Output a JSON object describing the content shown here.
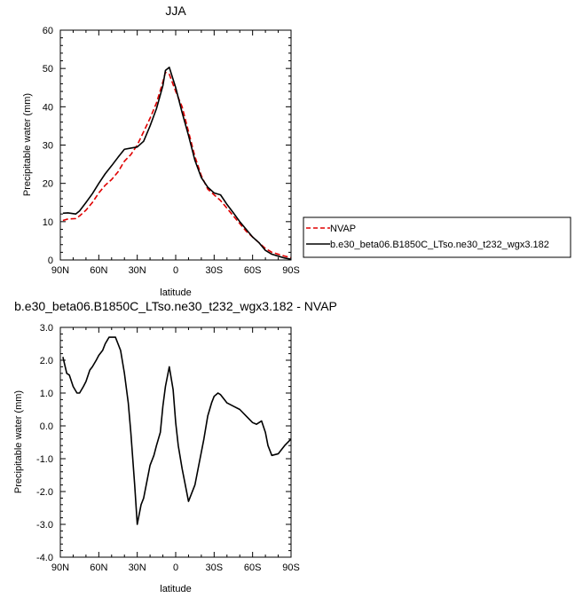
{
  "chart_data": [
    {
      "type": "line",
      "title": "JJA",
      "xlabel": "latitude",
      "ylabel": "Precipitable water (mm)",
      "xlim": [
        90,
        -90
      ],
      "ylim": [
        0,
        60
      ],
      "x_ticks": [
        90,
        60,
        30,
        0,
        -30,
        -60,
        -90
      ],
      "x_tick_labels": [
        "90N",
        "60N",
        "30N",
        "0",
        "30S",
        "60S",
        "90S"
      ],
      "y_ticks": [
        0,
        10,
        20,
        30,
        40,
        50,
        60
      ],
      "y_tick_labels": [
        "0",
        "10",
        "20",
        "30",
        "40",
        "50",
        "60"
      ],
      "legend_position": "right",
      "series": [
        {
          "name": "NVAP",
          "color": "#e00000",
          "dash": "dashed",
          "x": [
            88,
            84,
            78,
            75,
            70,
            65,
            60,
            55,
            50,
            45,
            40,
            35,
            30,
            25,
            20,
            15,
            10,
            8,
            5,
            0,
            -5,
            -10,
            -15,
            -20,
            -25,
            -30,
            -35,
            -40,
            -45,
            -50,
            -55,
            -60,
            -65,
            -70,
            -75,
            -80,
            -85,
            -90
          ],
          "values": [
            10.3,
            10.7,
            10.8,
            11.5,
            13.0,
            15.0,
            17.5,
            19.5,
            21.0,
            23.0,
            25.8,
            27.5,
            30.0,
            33.5,
            37.0,
            41.0,
            46.5,
            49.0,
            48.5,
            44.0,
            40.0,
            33.5,
            27.0,
            22.0,
            18.5,
            17.0,
            15.5,
            13.5,
            11.5,
            9.5,
            7.5,
            6.0,
            4.5,
            3.0,
            2.0,
            1.5,
            1.0,
            0.6
          ]
        },
        {
          "name": "b.e30_beta06.B1850C_LTso.ne30_t232_wgx3.182",
          "color": "#000000",
          "dash": "solid",
          "x": [
            88,
            84,
            78,
            75,
            70,
            65,
            60,
            55,
            50,
            45,
            40,
            35,
            30,
            25,
            20,
            15,
            10,
            8,
            5,
            0,
            -5,
            -10,
            -15,
            -20,
            -25,
            -30,
            -35,
            -40,
            -45,
            -50,
            -55,
            -60,
            -65,
            -70,
            -75,
            -80,
            -85,
            -90
          ],
          "values": [
            12.2,
            12.3,
            12.0,
            12.8,
            15.0,
            17.3,
            20.0,
            22.5,
            24.6,
            26.8,
            28.9,
            29.2,
            29.5,
            31.0,
            35.0,
            39.5,
            45.5,
            49.5,
            50.3,
            45.0,
            38.5,
            32.5,
            26.0,
            21.5,
            19.0,
            17.5,
            17.0,
            14.5,
            12.3,
            10.0,
            8.0,
            6.0,
            4.5,
            2.5,
            1.5,
            1.0,
            0.5,
            0.2
          ]
        }
      ]
    },
    {
      "type": "line",
      "title": "b.e30_beta06.B1850C_LTso.ne30_t232_wgx3.182 - NVAP",
      "xlabel": "latitude",
      "ylabel": "Precipitable water (mm)",
      "xlim": [
        90,
        -90
      ],
      "ylim": [
        -4,
        3
      ],
      "x_ticks": [
        90,
        60,
        30,
        0,
        -30,
        -60,
        -90
      ],
      "x_tick_labels": [
        "90N",
        "60N",
        "30N",
        "0",
        "30S",
        "60S",
        "90S"
      ],
      "y_ticks": [
        3,
        2,
        1,
        0,
        -1,
        -2,
        -3,
        -4
      ],
      "y_tick_labels": [
        "3.0",
        "2.0",
        "1.0",
        "0.0",
        "-1.0",
        "-2.0",
        "-3.0",
        "-4.0"
      ],
      "series": [
        {
          "color": "#000000",
          "x": [
            88,
            85,
            83,
            80,
            77,
            75,
            72,
            70,
            67,
            65,
            62,
            60,
            57,
            55,
            52,
            50,
            47,
            45,
            43,
            40,
            37,
            35,
            32,
            30,
            27,
            25,
            22,
            20,
            17,
            15,
            12,
            10,
            8,
            5,
            2,
            0,
            -2,
            -5,
            -8,
            -10,
            -12,
            -15,
            -18,
            -20,
            -22,
            -25,
            -28,
            -30,
            -33,
            -35,
            -38,
            -40,
            -45,
            -50,
            -55,
            -60,
            -63,
            -65,
            -67,
            -70,
            -72,
            -75,
            -80,
            -85,
            -90
          ],
          "values": [
            2.1,
            1.6,
            1.55,
            1.2,
            1.0,
            1.0,
            1.2,
            1.35,
            1.7,
            1.8,
            2.0,
            2.15,
            2.3,
            2.5,
            2.7,
            2.7,
            2.7,
            2.5,
            2.3,
            1.6,
            0.7,
            -0.2,
            -1.8,
            -3.0,
            -2.4,
            -2.2,
            -1.6,
            -1.2,
            -0.9,
            -0.6,
            -0.2,
            0.6,
            1.2,
            1.8,
            1.1,
            0.1,
            -0.6,
            -1.3,
            -1.9,
            -2.3,
            -2.1,
            -1.8,
            -1.2,
            -0.8,
            -0.4,
            0.3,
            0.7,
            0.9,
            1.0,
            0.95,
            0.8,
            0.7,
            0.6,
            0.5,
            0.3,
            0.1,
            0.05,
            0.1,
            0.15,
            -0.2,
            -0.6,
            -0.9,
            -0.85,
            -0.6,
            -0.4
          ]
        }
      ]
    }
  ]
}
